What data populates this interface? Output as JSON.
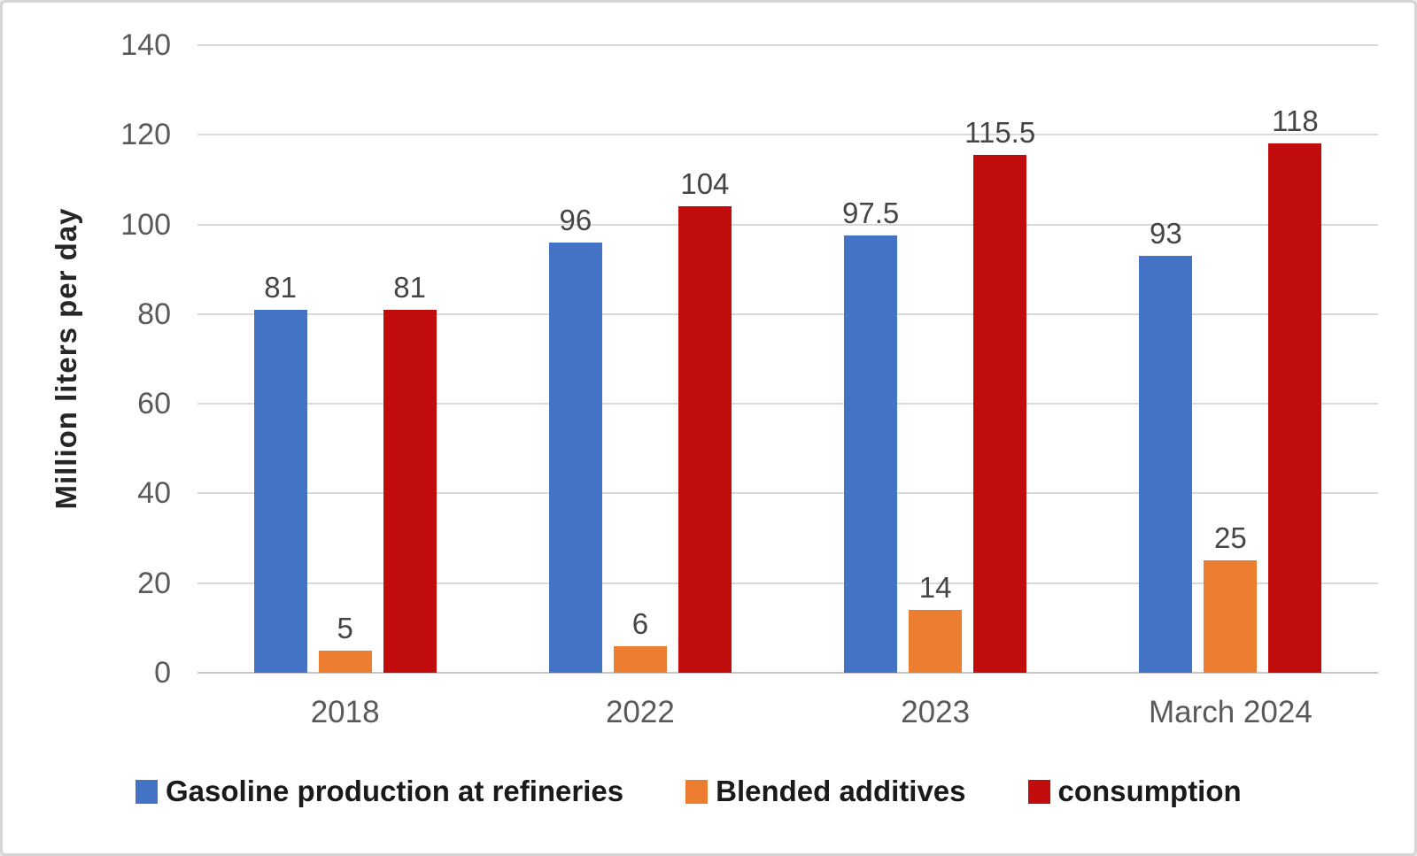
{
  "chart_data": {
    "type": "bar",
    "categories": [
      "2018",
      "2022",
      "2023",
      "March 2024"
    ],
    "series": [
      {
        "name": "Gasoline production at refineries",
        "color": "#4472C4",
        "values": [
          81,
          96,
          97.5,
          93
        ]
      },
      {
        "name": "Blended additives",
        "color": "#ED7D31",
        "values": [
          5,
          6,
          14,
          25
        ]
      },
      {
        "name": "consumption",
        "color": "#C00C0C",
        "values": [
          81,
          104,
          115.5,
          118
        ]
      }
    ],
    "title": "",
    "xlabel": "",
    "ylabel": "Million liters per day",
    "ylim": [
      0,
      140
    ],
    "yticks": [
      0,
      20,
      40,
      60,
      80,
      100,
      120,
      140
    ],
    "grid": true,
    "legend_position": "bottom",
    "value_labels": true
  },
  "colors": {
    "gridline": "#D9D9D9",
    "axis_line": "#C6C6C6",
    "tick_text": "#595959",
    "value_label_text": "#454545",
    "category_text": "#595959",
    "axis_title_text": "#262626",
    "legend_text": "#1A1A1A",
    "frame_border": "#D5D5D5",
    "background": "#FFFFFF"
  }
}
